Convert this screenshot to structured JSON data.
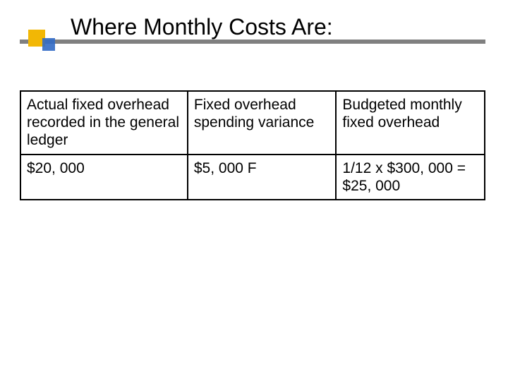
{
  "title": "Where Monthly Costs Are:",
  "table": {
    "columns": [
      "c1",
      "c2",
      "c3"
    ],
    "rows": [
      [
        "Actual fixed overhead recorded in the general ledger",
        "Fixed overhead spending variance",
        "Budgeted monthly fixed overhead"
      ],
      [
        "$20, 000",
        "$5, 000 F",
        "1/12 x $300, 000 = $25, 000"
      ]
    ],
    "border_color": "#000000",
    "text_color": "#000000",
    "background_color": "#ffffff",
    "cell_fontsize": 21
  },
  "accent": {
    "bar_color": "#808080",
    "yellow": "#f2b705",
    "blue": "#316ac5"
  }
}
